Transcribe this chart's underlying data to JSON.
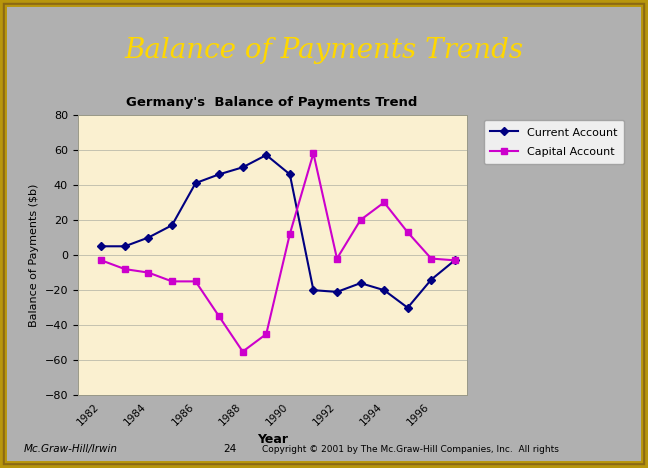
{
  "title_main": "Balance of Payments Trends",
  "chart_title": "Germany's  Balance of Payments Trend",
  "xlabel": "Year",
  "ylabel": "Balance of Payments ($b)",
  "years": [
    1982,
    1983,
    1984,
    1985,
    1986,
    1987,
    1988,
    1989,
    1990,
    1991,
    1992,
    1993,
    1994,
    1995,
    1996,
    1997
  ],
  "current_account": [
    5,
    5,
    10,
    17,
    41,
    46,
    50,
    57,
    46,
    -20,
    -21,
    -16,
    -20,
    -30,
    -14,
    -3
  ],
  "capital_account": [
    -3,
    -8,
    -10,
    -15,
    -15,
    -35,
    -55,
    -45,
    12,
    58,
    -2,
    20,
    30,
    13,
    -2,
    -3
  ],
  "current_color": "#000080",
  "capital_color": "#CC00CC",
  "bg_color": "#FAF0D0",
  "outer_bg": "#B0B0B0",
  "header_bg": "#0a0a0a",
  "header_text_color": "#FFD700",
  "ylim": [
    -80,
    80
  ],
  "yticks": [
    -80,
    -60,
    -40,
    -20,
    0,
    20,
    40,
    60,
    80
  ],
  "footer_left": "Mc.Graw-Hill/Irwin",
  "footer_center": "24",
  "footer_right": "Copyright © 2001 by The Mc.Graw-Hill Companies, Inc.  All rights",
  "gold_color": "#B8960C",
  "white_panel_color": "#F0F0F0"
}
